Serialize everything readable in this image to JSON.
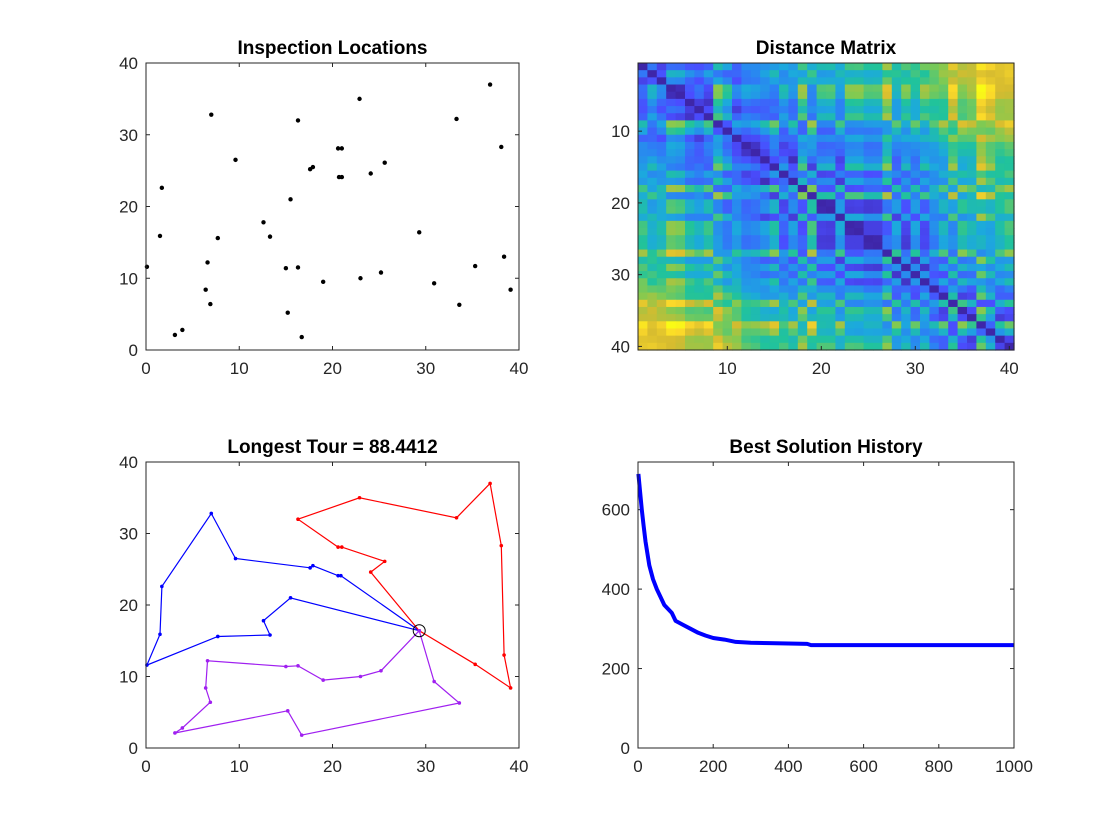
{
  "chart_data": [
    {
      "id": "inspection",
      "type": "scatter",
      "title": "Inspection Locations",
      "xlim": [
        0,
        40
      ],
      "ylim": [
        0,
        40
      ],
      "xticks": [
        0,
        10,
        20,
        30,
        40
      ],
      "yticks": [
        0,
        10,
        20,
        30,
        40
      ],
      "color": "#000000",
      "points": [
        [
          0.1,
          11.6
        ],
        [
          1.7,
          22.6
        ],
        [
          1.5,
          15.9
        ],
        [
          3.1,
          2.1
        ],
        [
          3.9,
          2.8
        ],
        [
          6.4,
          8.4
        ],
        [
          6.6,
          12.2
        ],
        [
          6.9,
          6.4
        ],
        [
          7.0,
          32.8
        ],
        [
          9.6,
          26.5
        ],
        [
          7.7,
          15.6
        ],
        [
          12.6,
          17.8
        ],
        [
          13.3,
          15.8
        ],
        [
          15.0,
          11.4
        ],
        [
          15.2,
          5.2
        ],
        [
          15.5,
          21.0
        ],
        [
          16.3,
          11.5
        ],
        [
          16.3,
          32.0
        ],
        [
          16.7,
          1.8
        ],
        [
          17.6,
          25.2
        ],
        [
          17.9,
          25.5
        ],
        [
          19.0,
          9.5
        ],
        [
          20.6,
          28.1
        ],
        [
          21.0,
          28.1
        ],
        [
          20.7,
          24.1
        ],
        [
          21.0,
          24.1
        ],
        [
          22.9,
          35.0
        ],
        [
          23.0,
          10.0
        ],
        [
          24.1,
          24.6
        ],
        [
          25.2,
          10.8
        ],
        [
          25.6,
          26.1
        ],
        [
          29.3,
          16.4
        ],
        [
          30.9,
          9.3
        ],
        [
          33.3,
          32.2
        ],
        [
          33.6,
          6.3
        ],
        [
          35.3,
          11.7
        ],
        [
          36.9,
          37.0
        ],
        [
          38.1,
          28.3
        ],
        [
          38.4,
          13.0
        ],
        [
          39.1,
          8.4
        ]
      ]
    },
    {
      "id": "distance",
      "type": "heatmap",
      "title": "Distance Matrix",
      "size": 40,
      "xticks": [
        10,
        20,
        30,
        40
      ],
      "yticks": [
        10,
        20,
        30,
        40
      ],
      "colormap": [
        "#3e26a8",
        "#4a4dff",
        "#2d7ff5",
        "#1ca9dd",
        "#21c39b",
        "#82ca51",
        "#d5bb2f",
        "#fbd82a",
        "#f9fb15"
      ]
    },
    {
      "id": "tours",
      "type": "line",
      "title": "Longest Tour = 88.4412",
      "xlim": [
        0,
        40
      ],
      "ylim": [
        0,
        40
      ],
      "xticks": [
        0,
        10,
        20,
        30,
        40
      ],
      "yticks": [
        0,
        10,
        20,
        30,
        40
      ],
      "depot": [
        29.3,
        16.4
      ],
      "routes": [
        {
          "color": "#0000ff",
          "points": [
            [
              29.3,
              16.4
            ],
            [
              20.9,
              24.1
            ],
            [
              20.6,
              24.1
            ],
            [
              17.9,
              25.5
            ],
            [
              17.6,
              25.2
            ],
            [
              9.6,
              26.5
            ],
            [
              7.0,
              32.8
            ],
            [
              1.7,
              22.6
            ],
            [
              1.5,
              15.9
            ],
            [
              0.1,
              11.6
            ],
            [
              7.7,
              15.6
            ],
            [
              13.3,
              15.8
            ],
            [
              12.6,
              17.8
            ],
            [
              15.5,
              21.0
            ],
            [
              29.3,
              16.4
            ]
          ]
        },
        {
          "color": "#ff0000",
          "points": [
            [
              29.3,
              16.4
            ],
            [
              24.1,
              24.6
            ],
            [
              25.6,
              26.1
            ],
            [
              21.0,
              28.1
            ],
            [
              20.6,
              28.1
            ],
            [
              16.3,
              32.0
            ],
            [
              22.9,
              35.0
            ],
            [
              33.3,
              32.2
            ],
            [
              36.9,
              37.0
            ],
            [
              38.1,
              28.3
            ],
            [
              38.4,
              13.0
            ],
            [
              39.1,
              8.4
            ],
            [
              35.3,
              11.7
            ],
            [
              29.3,
              16.4
            ]
          ]
        },
        {
          "color": "#a020f0",
          "points": [
            [
              29.3,
              16.4
            ],
            [
              25.2,
              10.8
            ],
            [
              23.0,
              10.0
            ],
            [
              19.0,
              9.5
            ],
            [
              16.3,
              11.5
            ],
            [
              15.0,
              11.4
            ],
            [
              6.6,
              12.2
            ],
            [
              6.4,
              8.4
            ],
            [
              6.9,
              6.4
            ],
            [
              3.9,
              2.8
            ],
            [
              3.1,
              2.1
            ],
            [
              15.2,
              5.2
            ],
            [
              16.7,
              1.8
            ],
            [
              33.6,
              6.3
            ],
            [
              30.9,
              9.3
            ],
            [
              29.3,
              16.4
            ]
          ]
        }
      ]
    },
    {
      "id": "history",
      "type": "line",
      "title": "Best Solution History",
      "xlim": [
        0,
        1000
      ],
      "ylim": [
        0,
        720
      ],
      "xticks": [
        0,
        200,
        400,
        600,
        800,
        1000
      ],
      "yticks": [
        0,
        200,
        400,
        600
      ],
      "color": "#0000ff",
      "points": [
        [
          1,
          690
        ],
        [
          5,
          650
        ],
        [
          10,
          600
        ],
        [
          15,
          560
        ],
        [
          20,
          520
        ],
        [
          25,
          490
        ],
        [
          30,
          460
        ],
        [
          40,
          425
        ],
        [
          50,
          400
        ],
        [
          60,
          380
        ],
        [
          70,
          360
        ],
        [
          80,
          350
        ],
        [
          90,
          340
        ],
        [
          100,
          320
        ],
        [
          120,
          310
        ],
        [
          140,
          300
        ],
        [
          160,
          290
        ],
        [
          180,
          283
        ],
        [
          200,
          277
        ],
        [
          230,
          273
        ],
        [
          260,
          267
        ],
        [
          300,
          265
        ],
        [
          350,
          264
        ],
        [
          400,
          263
        ],
        [
          450,
          262
        ],
        [
          460,
          259
        ],
        [
          600,
          259
        ],
        [
          800,
          259
        ],
        [
          1000,
          259
        ]
      ]
    }
  ]
}
